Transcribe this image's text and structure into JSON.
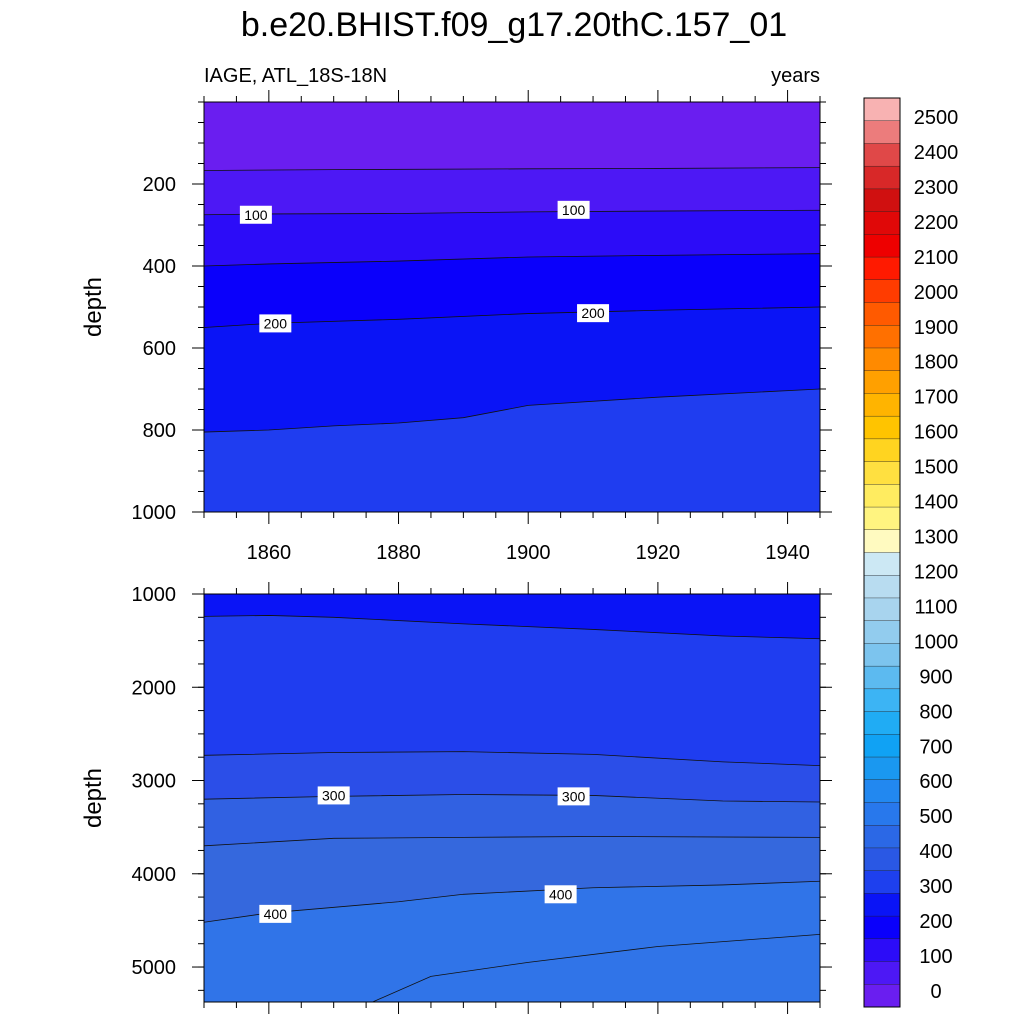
{
  "title": "b.e20.BHIST.f09_g17.20thC.157_01",
  "subtitle_left": "IAGE, ATL_18S-18N",
  "subtitle_right": "years",
  "chart_data": [
    {
      "type": "contour",
      "panel": "upper",
      "ylabel": "depth",
      "xlabel": "",
      "xlim": [
        1850,
        1945
      ],
      "ylim": [
        0,
        1000
      ],
      "y_inverted": true,
      "xticks": [
        1860,
        1880,
        1900,
        1920,
        1940
      ],
      "yticks": [
        200,
        400,
        600,
        800,
        1000
      ],
      "contours": [
        {
          "level": 50,
          "label": "",
          "points": [
            [
              1850,
              167
            ],
            [
              1870,
              165
            ],
            [
              1900,
              163
            ],
            [
              1920,
              162
            ],
            [
              1945,
              160
            ]
          ]
        },
        {
          "level": 100,
          "label": "100",
          "points": [
            [
              1850,
              275
            ],
            [
              1860,
              273
            ],
            [
              1880,
              272
            ],
            [
              1900,
              268
            ],
            [
              1920,
              266
            ],
            [
              1945,
              264
            ]
          ]
        },
        {
          "level": 150,
          "label": "",
          "points": [
            [
              1850,
              400
            ],
            [
              1860,
              395
            ],
            [
              1880,
              388
            ],
            [
              1900,
              378
            ],
            [
              1920,
              374
            ],
            [
              1945,
              370
            ]
          ]
        },
        {
          "level": 200,
          "label": "200",
          "points": [
            [
              1850,
              550
            ],
            [
              1860,
              540
            ],
            [
              1880,
              530
            ],
            [
              1900,
              516
            ],
            [
              1920,
              508
            ],
            [
              1945,
              500
            ]
          ]
        },
        {
          "level": 250,
          "label": "",
          "points": [
            [
              1850,
              805
            ],
            [
              1860,
              800
            ],
            [
              1870,
              790
            ],
            [
              1880,
              783
            ],
            [
              1890,
              770
            ],
            [
              1900,
              740
            ],
            [
              1920,
              720
            ],
            [
              1945,
              700
            ]
          ]
        }
      ],
      "contour_labels": [
        {
          "text": "100",
          "x": 1858,
          "y": 275
        },
        {
          "text": "100",
          "x": 1907,
          "y": 263
        },
        {
          "text": "200",
          "x": 1861,
          "y": 540
        },
        {
          "text": "200",
          "x": 1910,
          "y": 515
        }
      ],
      "bands": [
        {
          "range": [
            0,
            50
          ],
          "color": "#6a1ef0"
        },
        {
          "range": [
            50,
            100
          ],
          "color": "#4d18f5"
        },
        {
          "range": [
            100,
            150
          ],
          "color": "#2c0cf8"
        },
        {
          "range": [
            150,
            200
          ],
          "color": "#0a00fb"
        },
        {
          "range": [
            200,
            250
          ],
          "color": "#0a14f6"
        },
        {
          "range": [
            250,
            300
          ],
          "color": "#1f3df0"
        }
      ]
    },
    {
      "type": "contour",
      "panel": "lower",
      "ylabel": "depth",
      "xlabel": "",
      "xlim": [
        1850,
        1945
      ],
      "ylim": [
        1000,
        5375
      ],
      "y_inverted": true,
      "xticks": [
        1860,
        1880,
        1900,
        1920,
        1940
      ],
      "yticks": [
        1000,
        2000,
        3000,
        4000,
        5000
      ],
      "contours": [
        {
          "level": 250,
          "label": "",
          "points": [
            [
              1850,
              1240
            ],
            [
              1860,
              1230
            ],
            [
              1870,
              1250
            ],
            [
              1890,
              1320
            ],
            [
              1910,
              1380
            ],
            [
              1930,
              1450
            ],
            [
              1945,
              1480
            ]
          ]
        },
        {
          "level": 250,
          "label": "",
          "points": [
            [
              1850,
              2730
            ],
            [
              1870,
              2700
            ],
            [
              1890,
              2690
            ],
            [
              1910,
              2720
            ],
            [
              1930,
              2800
            ],
            [
              1945,
              2840
            ]
          ]
        },
        {
          "level": 300,
          "label": "300",
          "points": [
            [
              1850,
              3200
            ],
            [
              1870,
              3170
            ],
            [
              1890,
              3150
            ],
            [
              1910,
              3160
            ],
            [
              1930,
              3220
            ],
            [
              1945,
              3230
            ]
          ]
        },
        {
          "level": 350,
          "label": "",
          "points": [
            [
              1850,
              3700
            ],
            [
              1870,
              3620
            ],
            [
              1890,
              3610
            ],
            [
              1910,
              3600
            ],
            [
              1945,
              3610
            ]
          ]
        },
        {
          "level": 400,
          "label": "400",
          "points": [
            [
              1850,
              4520
            ],
            [
              1860,
              4420
            ],
            [
              1880,
              4300
            ],
            [
              1890,
              4220
            ],
            [
              1910,
              4150
            ],
            [
              1930,
              4120
            ],
            [
              1945,
              4080
            ]
          ]
        },
        {
          "level": 450,
          "label": "",
          "points": [
            [
              1876,
              5375
            ],
            [
              1885,
              5100
            ],
            [
              1900,
              4950
            ],
            [
              1920,
              4780
            ],
            [
              1945,
              4650
            ]
          ]
        }
      ],
      "contour_labels": [
        {
          "text": "300",
          "x": 1870,
          "y": 3160
        },
        {
          "text": "300",
          "x": 1907,
          "y": 3170
        },
        {
          "text": "400",
          "x": 1861,
          "y": 4430
        },
        {
          "text": "400",
          "x": 1905,
          "y": 4220
        }
      ],
      "bands": [
        {
          "range": [
            200,
            250
          ],
          "color": "#0a14f6"
        },
        {
          "range": [
            250,
            300
          ],
          "color": "#1f3df0"
        },
        {
          "range": [
            300,
            350
          ],
          "color": "#2b4ee8"
        },
        {
          "range": [
            350,
            400
          ],
          "color": "#3161e2"
        },
        {
          "range": [
            400,
            450
          ],
          "color": "#3568dd"
        },
        {
          "range": [
            450,
            500
          ],
          "color": "#3074e8"
        }
      ]
    }
  ],
  "colorbar": {
    "labels": [
      "2500",
      "2400",
      "2300",
      "2200",
      "2100",
      "2000",
      "1900",
      "1800",
      "1700",
      "1600",
      "1500",
      "1400",
      "1300",
      "1200",
      "1100",
      "1000",
      "900",
      "800",
      "700",
      "600",
      "500",
      "400",
      "300",
      "200",
      "100",
      "0"
    ],
    "colors": [
      "#f8b2b2",
      "#ec7c7c",
      "#e04848",
      "#d82828",
      "#d01010",
      "#e00808",
      "#ee0000",
      "#ff1a00",
      "#ff3c00",
      "#ff5a00",
      "#ff7000",
      "#ff8a00",
      "#ffa000",
      "#ffb400",
      "#ffc400",
      "#ffd420",
      "#ffe040",
      "#ffec60",
      "#fff480",
      "#fffac0",
      "#cce8f4",
      "#b8dcf0",
      "#a8d4ee",
      "#92ccee",
      "#7cc4ee",
      "#5cbaf0",
      "#3cb4f4",
      "#20acf4",
      "#10a2f4",
      "#1a98f0",
      "#2288f0",
      "#2878ec",
      "#2b68e6",
      "#2a58e4",
      "#1e40ee",
      "#0a14f6",
      "#0a00fb",
      "#2c0cf8",
      "#4d18f5",
      "#6a1ef0"
    ]
  }
}
